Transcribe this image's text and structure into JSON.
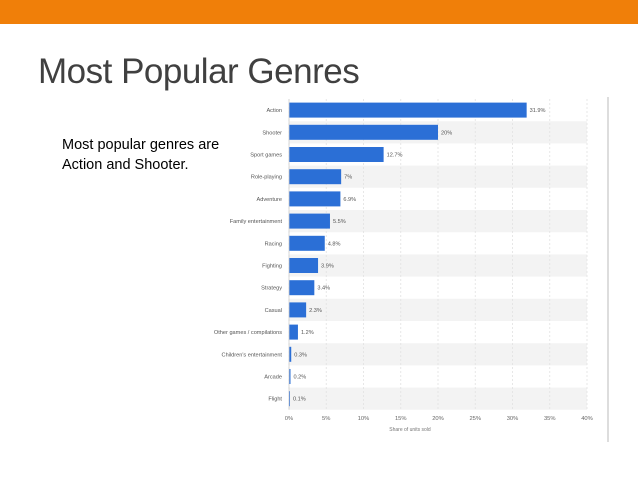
{
  "slide": {
    "title": "Most Popular Genres",
    "body": "Most popular genres are Action and Shooter."
  },
  "colors": {
    "topbar": "#f07f09",
    "bar": "#2b6fd6",
    "stripe": "#f3f3f3"
  },
  "chart_data": {
    "type": "bar",
    "orientation": "horizontal",
    "categories": [
      "Action",
      "Shooter",
      "Sport games",
      "Role-playing",
      "Adventure",
      "Family entertainment",
      "Racing",
      "Fighting",
      "Strategy",
      "Casual",
      "Other games / compilations",
      "Children's entertainment",
      "Arcade",
      "Flight"
    ],
    "values": [
      31.9,
      20,
      12.7,
      7,
      6.9,
      5.5,
      4.8,
      3.9,
      3.4,
      2.3,
      1.2,
      0.3,
      0.2,
      0.1
    ],
    "value_labels": [
      "31.9%",
      "20%",
      "12.7%",
      "7%",
      "6.9%",
      "5.5%",
      "4.8%",
      "3.9%",
      "3.4%",
      "2.3%",
      "1.2%",
      "0.3%",
      "0.2%",
      "0.1%"
    ],
    "xticks": [
      0,
      5,
      10,
      15,
      20,
      25,
      30,
      35,
      40
    ],
    "xtick_labels": [
      "0%",
      "5%",
      "10%",
      "15%",
      "20%",
      "25%",
      "30%",
      "35%",
      "40%"
    ],
    "xlim": [
      0,
      40
    ],
    "xlabel": "Share of units sold",
    "grid": true
  }
}
